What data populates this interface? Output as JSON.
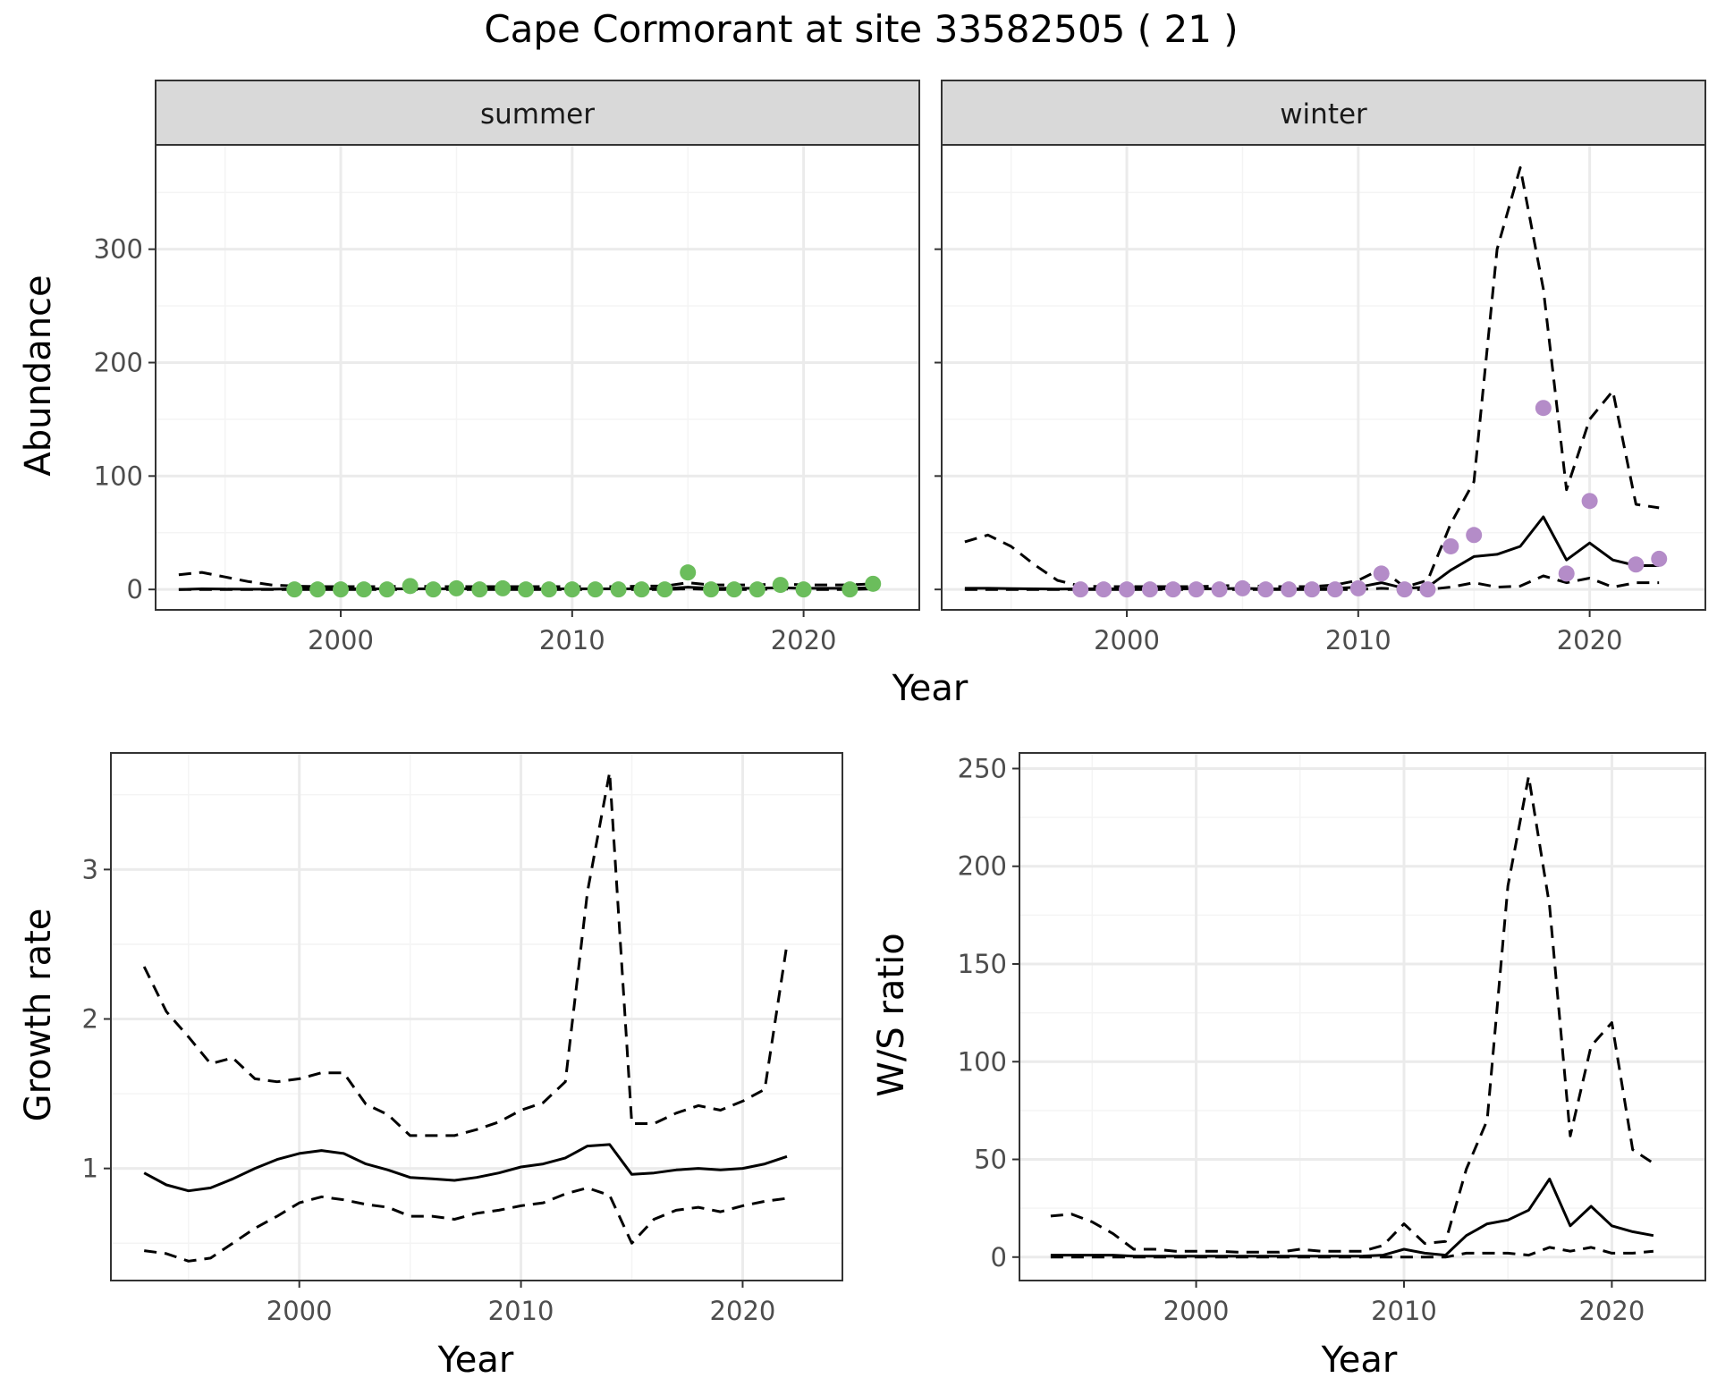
{
  "figure": {
    "title": "Cape Cormorant at site 33582505 ( 21 )",
    "shared_xlabel": "Year"
  },
  "colors": {
    "summer_points": "#6bbd5c",
    "winter_points": "#b48cc8",
    "lines": "#000000",
    "grid_major": "#ebebeb",
    "grid_minor": "#f4f4f4",
    "strip_fill": "#d9d9d9",
    "panel_border": "#333333"
  },
  "chart_data": [
    {
      "id": "abundance-summer",
      "type": "line",
      "strip": "summer",
      "ylabel": "Abundance",
      "xlabel": "",
      "xlim": [
        1992,
        2025
      ],
      "ylim": [
        -18,
        392
      ],
      "xticks": [
        2000,
        2010,
        2020
      ],
      "xminor": [
        1995,
        2005,
        2015
      ],
      "yticks": [
        0,
        100,
        200,
        300
      ],
      "yminor": [
        50,
        150,
        250,
        350
      ],
      "show_y_tick_labels": true,
      "series": [
        {
          "role": "estimate",
          "style": "solid",
          "x": [
            1993,
            1994,
            1995,
            1996,
            1997,
            1998,
            1999,
            2000,
            2001,
            2002,
            2003,
            2004,
            2005,
            2006,
            2007,
            2008,
            2009,
            2010,
            2011,
            2012,
            2013,
            2014,
            2015,
            2016,
            2017,
            2018,
            2019,
            2020,
            2021,
            2022,
            2023
          ],
          "y": [
            0,
            0.5,
            0.3,
            0.2,
            0.2,
            0.5,
            0.5,
            0.5,
            0.5,
            0.5,
            0.5,
            0.5,
            0.5,
            0.5,
            0.5,
            0.5,
            0.5,
            0.5,
            0.5,
            0.5,
            0.5,
            0.5,
            2,
            1,
            1,
            1,
            1.5,
            1,
            1,
            1,
            1.5
          ]
        },
        {
          "role": "upper",
          "style": "dashed",
          "x": [
            1993,
            1994,
            1995,
            1996,
            1997,
            1998,
            1999,
            2000,
            2001,
            2002,
            2003,
            2004,
            2005,
            2006,
            2007,
            2008,
            2009,
            2010,
            2011,
            2012,
            2013,
            2014,
            2015,
            2016,
            2017,
            2018,
            2019,
            2020,
            2021,
            2022,
            2023
          ],
          "y": [
            13,
            15,
            11,
            7,
            4,
            3,
            2.5,
            2.5,
            2.5,
            2.5,
            3,
            2.5,
            2.5,
            2.5,
            2.5,
            2.5,
            2.5,
            2.5,
            2.5,
            2.5,
            3,
            3,
            6,
            4,
            4,
            4,
            5,
            4,
            4,
            4,
            5
          ]
        },
        {
          "role": "lower",
          "style": "dashed",
          "x": [
            1993,
            1994,
            1995,
            1996,
            1997,
            1998,
            1999,
            2000,
            2001,
            2002,
            2003,
            2004,
            2005,
            2006,
            2007,
            2008,
            2009,
            2010,
            2011,
            2012,
            2013,
            2014,
            2015,
            2016,
            2017,
            2018,
            2019,
            2020,
            2021,
            2022,
            2023
          ],
          "y": [
            0,
            0,
            0,
            0,
            0,
            0,
            0,
            0,
            0,
            0,
            0,
            0,
            0,
            0,
            0,
            0,
            0,
            0,
            0,
            0,
            0,
            0,
            0.5,
            0,
            0,
            0,
            0.5,
            0,
            0,
            0,
            0.5
          ]
        }
      ],
      "points": {
        "x": [
          1998,
          1999,
          2000,
          2001,
          2002,
          2003,
          2004,
          2005,
          2006,
          2007,
          2008,
          2009,
          2010,
          2011,
          2012,
          2013,
          2014,
          2015,
          2016,
          2017,
          2018,
          2019,
          2020,
          2022,
          2023
        ],
        "y": [
          0,
          0,
          0,
          0,
          0,
          3,
          0,
          1,
          0,
          1,
          0,
          0,
          0,
          0,
          0,
          0,
          0,
          15,
          0,
          0,
          0,
          4,
          0,
          0,
          5
        ]
      }
    },
    {
      "id": "abundance-winter",
      "type": "line",
      "strip": "winter",
      "ylabel": "",
      "xlabel": "",
      "xlim": [
        1992,
        2025
      ],
      "ylim": [
        -18,
        392
      ],
      "xticks": [
        2000,
        2010,
        2020
      ],
      "xminor": [
        1995,
        2005,
        2015
      ],
      "yticks": [
        0,
        100,
        200,
        300
      ],
      "yminor": [
        50,
        150,
        250,
        350
      ],
      "show_y_tick_labels": false,
      "series": [
        {
          "role": "estimate",
          "style": "solid",
          "x": [
            1993,
            1994,
            1995,
            1996,
            1997,
            1998,
            1999,
            2000,
            2001,
            2002,
            2003,
            2004,
            2005,
            2006,
            2007,
            2008,
            2009,
            2010,
            2011,
            2012,
            2013,
            2014,
            2015,
            2016,
            2017,
            2018,
            2019,
            2020,
            2021,
            2022,
            2023
          ],
          "y": [
            1,
            1,
            0.8,
            0.5,
            0.4,
            0.5,
            0.5,
            0.5,
            0.5,
            0.5,
            0.5,
            0.5,
            1,
            0.5,
            0.5,
            0.5,
            1,
            2,
            6,
            1,
            2,
            17,
            29,
            31,
            38,
            64,
            26,
            41,
            26,
            21,
            21
          ]
        },
        {
          "role": "upper",
          "style": "dashed",
          "x": [
            1993,
            1994,
            1995,
            1996,
            1997,
            1998,
            1999,
            2000,
            2001,
            2002,
            2003,
            2004,
            2005,
            2006,
            2007,
            2008,
            2009,
            2010,
            2011,
            2012,
            2013,
            2014,
            2015,
            2016,
            2017,
            2018,
            2019,
            2020,
            2021,
            2022,
            2023
          ],
          "y": [
            42,
            48,
            38,
            22,
            8,
            3,
            2.5,
            2.5,
            2.5,
            2.5,
            2.5,
            3,
            4,
            2.5,
            2.5,
            2.5,
            4,
            8,
            18,
            2,
            8,
            58,
            95,
            300,
            372,
            265,
            88,
            150,
            175,
            75,
            72
          ]
        },
        {
          "role": "lower",
          "style": "dashed",
          "x": [
            1993,
            1994,
            1995,
            1996,
            1997,
            1998,
            1999,
            2000,
            2001,
            2002,
            2003,
            2004,
            2005,
            2006,
            2007,
            2008,
            2009,
            2010,
            2011,
            2012,
            2013,
            2014,
            2015,
            2016,
            2017,
            2018,
            2019,
            2020,
            2021,
            2022,
            2023
          ],
          "y": [
            0,
            0,
            0,
            0,
            0,
            0,
            0,
            0,
            0,
            0,
            0,
            0,
            0,
            0,
            0,
            0,
            0,
            0,
            1,
            0,
            0,
            2,
            6,
            2,
            3,
            12,
            6,
            10,
            2,
            6,
            6
          ]
        }
      ],
      "points": {
        "x": [
          1998,
          1999,
          2000,
          2001,
          2002,
          2003,
          2004,
          2005,
          2006,
          2007,
          2008,
          2009,
          2010,
          2011,
          2012,
          2013,
          2014,
          2015,
          2018,
          2019,
          2020,
          2022,
          2023
        ],
        "y": [
          0,
          0,
          0,
          0,
          0,
          0,
          0,
          1,
          0,
          0,
          0,
          0,
          1,
          14,
          0,
          0,
          38,
          48,
          160,
          14,
          78,
          22,
          27
        ]
      }
    },
    {
      "id": "growth-rate",
      "type": "line",
      "strip": "",
      "ylabel": "Growth rate",
      "xlabel": "Year",
      "xlim": [
        1991.5,
        2024.5
      ],
      "ylim": [
        0.25,
        3.78
      ],
      "xticks": [
        2000,
        2010,
        2020
      ],
      "xminor": [
        1995,
        2005,
        2015
      ],
      "yticks": [
        1,
        2,
        3
      ],
      "yminor": [
        0.5,
        1.5,
        2.5,
        3.5
      ],
      "show_y_tick_labels": true,
      "series": [
        {
          "role": "estimate",
          "style": "solid",
          "x": [
            1993,
            1994,
            1995,
            1996,
            1997,
            1998,
            1999,
            2000,
            2001,
            2002,
            2003,
            2004,
            2005,
            2006,
            2007,
            2008,
            2009,
            2010,
            2011,
            2012,
            2013,
            2014,
            2015,
            2016,
            2017,
            2018,
            2019,
            2020,
            2021,
            2022
          ],
          "y": [
            0.97,
            0.89,
            0.85,
            0.87,
            0.93,
            1.0,
            1.06,
            1.1,
            1.12,
            1.1,
            1.03,
            0.99,
            0.94,
            0.93,
            0.92,
            0.94,
            0.97,
            1.01,
            1.03,
            1.07,
            1.15,
            1.16,
            0.96,
            0.97,
            0.99,
            1.0,
            0.99,
            1.0,
            1.03,
            1.08
          ]
        },
        {
          "role": "upper",
          "style": "dashed",
          "x": [
            1993,
            1994,
            1995,
            1996,
            1997,
            1998,
            1999,
            2000,
            2001,
            2002,
            2003,
            2004,
            2005,
            2006,
            2007,
            2008,
            2009,
            2010,
            2011,
            2012,
            2013,
            2014,
            2015,
            2016,
            2017,
            2018,
            2019,
            2020,
            2021,
            2022
          ],
          "y": [
            2.35,
            2.05,
            1.88,
            1.7,
            1.74,
            1.6,
            1.58,
            1.6,
            1.64,
            1.64,
            1.43,
            1.36,
            1.22,
            1.22,
            1.22,
            1.26,
            1.31,
            1.39,
            1.44,
            1.58,
            2.85,
            3.65,
            1.3,
            1.3,
            1.37,
            1.42,
            1.39,
            1.45,
            1.53,
            2.5
          ]
        },
        {
          "role": "lower",
          "style": "dashed",
          "x": [
            1993,
            1994,
            1995,
            1996,
            1997,
            1998,
            1999,
            2000,
            2001,
            2002,
            2003,
            2004,
            2005,
            2006,
            2007,
            2008,
            2009,
            2010,
            2011,
            2012,
            2013,
            2014,
            2015,
            2016,
            2017,
            2018,
            2019,
            2020,
            2021,
            2022
          ],
          "y": [
            0.45,
            0.43,
            0.38,
            0.4,
            0.5,
            0.6,
            0.68,
            0.77,
            0.81,
            0.79,
            0.76,
            0.74,
            0.68,
            0.68,
            0.66,
            0.7,
            0.72,
            0.75,
            0.77,
            0.83,
            0.87,
            0.82,
            0.5,
            0.66,
            0.72,
            0.74,
            0.71,
            0.75,
            0.78,
            0.8
          ]
        }
      ],
      "points": null
    },
    {
      "id": "ws-ratio",
      "type": "line",
      "strip": "",
      "ylabel": "W/S ratio",
      "xlabel": "Year",
      "xlim": [
        1991.5,
        2024.5
      ],
      "ylim": [
        -12,
        258
      ],
      "xticks": [
        2000,
        2010,
        2020
      ],
      "xminor": [
        1995,
        2005,
        2015
      ],
      "yticks": [
        0,
        50,
        100,
        150,
        200,
        250
      ],
      "yminor": [
        25,
        75,
        125,
        175,
        225
      ],
      "show_y_tick_labels": true,
      "series": [
        {
          "role": "estimate",
          "style": "solid",
          "x": [
            1993,
            1994,
            1995,
            1996,
            1997,
            1998,
            1999,
            2000,
            2001,
            2002,
            2003,
            2004,
            2005,
            2006,
            2007,
            2008,
            2009,
            2010,
            2011,
            2012,
            2013,
            2014,
            2015,
            2016,
            2017,
            2018,
            2019,
            2020,
            2021,
            2022
          ],
          "y": [
            1,
            1,
            1,
            1,
            0.5,
            0.5,
            0.5,
            0.5,
            0.5,
            0.5,
            0.5,
            0.5,
            0.5,
            0.5,
            0.5,
            0.5,
            1,
            4,
            2,
            1,
            11,
            17,
            19,
            24,
            40,
            16,
            26,
            16,
            13,
            11
          ]
        },
        {
          "role": "upper",
          "style": "dashed",
          "x": [
            1993,
            1994,
            1995,
            1996,
            1997,
            1998,
            1999,
            2000,
            2001,
            2002,
            2003,
            2004,
            2005,
            2006,
            2007,
            2008,
            2009,
            2010,
            2011,
            2012,
            2013,
            2014,
            2015,
            2016,
            2017,
            2018,
            2019,
            2020,
            2021,
            2022
          ],
          "y": [
            21,
            22,
            18,
            12,
            4,
            4,
            3,
            3,
            3,
            2.5,
            2.5,
            2.5,
            4,
            3,
            3,
            3,
            6,
            17,
            7,
            8,
            45,
            70,
            190,
            246,
            180,
            62,
            108,
            120,
            55,
            48
          ]
        },
        {
          "role": "lower",
          "style": "dashed",
          "x": [
            1993,
            1994,
            1995,
            1996,
            1997,
            1998,
            1999,
            2000,
            2001,
            2002,
            2003,
            2004,
            2005,
            2006,
            2007,
            2008,
            2009,
            2010,
            2011,
            2012,
            2013,
            2014,
            2015,
            2016,
            2017,
            2018,
            2019,
            2020,
            2021,
            2022
          ],
          "y": [
            0,
            0,
            0,
            0,
            0,
            0,
            0,
            0,
            0,
            0,
            0,
            0,
            0,
            0,
            0,
            0,
            0,
            0,
            0,
            0,
            2,
            2,
            2,
            1,
            5,
            3,
            5,
            2,
            2,
            3
          ]
        }
      ],
      "points": null
    }
  ]
}
